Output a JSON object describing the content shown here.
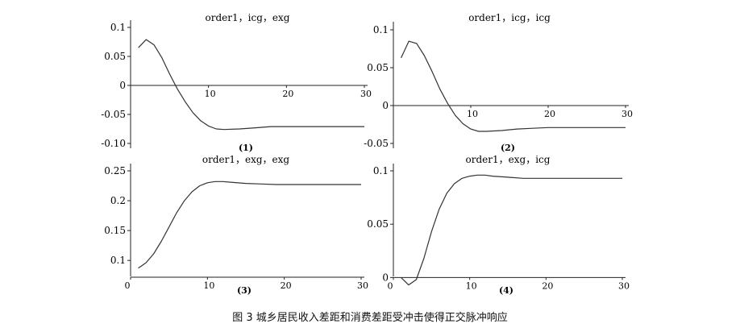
{
  "figure": {
    "caption": "图 3    城乡居民收入差距和消费差距受冲击使得正交脉冲响应"
  },
  "chart_data": [
    {
      "type": "line",
      "title": "order1，icg，exg",
      "label": "(1)",
      "xlabel": "",
      "ylabel": "",
      "xlim": [
        0,
        30
      ],
      "ylim": [
        -0.1,
        0.1
      ],
      "xticks": [
        {
          "v": 10,
          "t": "10"
        },
        {
          "v": 20,
          "t": "20"
        },
        {
          "v": 30,
          "t": "30"
        }
      ],
      "yticks": [
        {
          "v": 0.1,
          "t": "0.1"
        },
        {
          "v": 0.05,
          "t": "0.05"
        },
        {
          "v": 0,
          "t": "0"
        },
        {
          "v": -0.05,
          "t": "-0.05"
        },
        {
          "v": -0.1,
          "t": "-0.10"
        }
      ],
      "zero_line": true,
      "x": [
        1,
        2,
        3,
        4,
        5,
        6,
        7,
        8,
        9,
        10,
        11,
        12,
        14,
        16,
        18,
        20,
        22,
        25,
        28,
        30
      ],
      "y": [
        0.065,
        0.079,
        0.07,
        0.048,
        0.02,
        -0.006,
        -0.028,
        -0.047,
        -0.061,
        -0.07,
        -0.075,
        -0.076,
        -0.075,
        -0.073,
        -0.071,
        -0.071,
        -0.071,
        -0.071,
        -0.071,
        -0.071
      ]
    },
    {
      "type": "line",
      "title": "order1，icg，icg",
      "label": "(2)",
      "xlabel": "",
      "ylabel": "",
      "xlim": [
        0,
        30
      ],
      "ylim": [
        -0.05,
        0.1
      ],
      "xticks": [
        {
          "v": 10,
          "t": "10"
        },
        {
          "v": 20,
          "t": "20"
        },
        {
          "v": 30,
          "t": "30"
        }
      ],
      "yticks": [
        {
          "v": 0.1,
          "t": "0.1"
        },
        {
          "v": 0.05,
          "t": "0.05"
        },
        {
          "v": 0,
          "t": "0"
        },
        {
          "v": -0.05,
          "t": "-0.05"
        }
      ],
      "zero_line": true,
      "x": [
        1,
        2,
        3,
        4,
        5,
        6,
        7,
        8,
        9,
        10,
        11,
        12,
        14,
        16,
        18,
        20,
        22,
        25,
        28,
        30
      ],
      "y": [
        0.063,
        0.085,
        0.082,
        0.066,
        0.045,
        0.022,
        0.003,
        -0.013,
        -0.024,
        -0.031,
        -0.034,
        -0.034,
        -0.033,
        -0.031,
        -0.03,
        -0.029,
        -0.029,
        -0.029,
        -0.029,
        -0.029
      ]
    },
    {
      "type": "line",
      "title": "order1，exg，exg",
      "label": "(3)",
      "xlabel": "",
      "ylabel": "",
      "xlim": [
        0,
        30
      ],
      "ylim": [
        0.08,
        0.25
      ],
      "xticks": [
        {
          "v": 0,
          "t": "0"
        },
        {
          "v": 10,
          "t": "10"
        },
        {
          "v": 20,
          "t": "20"
        },
        {
          "v": 30,
          "t": "30"
        }
      ],
      "yticks": [
        {
          "v": 0.25,
          "t": "0.25"
        },
        {
          "v": 0.2,
          "t": "0.2"
        },
        {
          "v": 0.15,
          "t": "0.15"
        },
        {
          "v": 0.1,
          "t": "0.1"
        }
      ],
      "zero_line": false,
      "x": [
        1,
        2,
        3,
        4,
        5,
        6,
        7,
        8,
        9,
        10,
        11,
        12,
        13,
        15,
        17,
        19,
        21,
        23,
        26,
        30
      ],
      "y": [
        0.087,
        0.096,
        0.111,
        0.132,
        0.156,
        0.18,
        0.2,
        0.215,
        0.225,
        0.23,
        0.232,
        0.232,
        0.231,
        0.229,
        0.228,
        0.227,
        0.227,
        0.227,
        0.227,
        0.227
      ]
    },
    {
      "type": "line",
      "title": "order1，exg，icg",
      "label": "(4)",
      "xlabel": "",
      "ylabel": "",
      "xlim": [
        0,
        30
      ],
      "ylim": [
        -0.002,
        0.1
      ],
      "xticks": [
        {
          "v": 0,
          "t": "0"
        },
        {
          "v": 10,
          "t": "10"
        },
        {
          "v": 20,
          "t": "20"
        },
        {
          "v": 30,
          "t": "30"
        }
      ],
      "yticks": [
        {
          "v": 0.1,
          "t": "0.1"
        },
        {
          "v": 0.05,
          "t": "0.05"
        },
        {
          "v": 0,
          "t": "0"
        }
      ],
      "zero_line": true,
      "x": [
        1,
        2,
        3,
        4,
        5,
        6,
        7,
        8,
        9,
        10,
        11,
        12,
        13,
        15,
        17,
        19,
        21,
        23,
        26,
        30
      ],
      "y": [
        0,
        -0.007,
        -0.002,
        0.018,
        0.043,
        0.064,
        0.079,
        0.088,
        0.093,
        0.095,
        0.096,
        0.096,
        0.095,
        0.094,
        0.093,
        0.093,
        0.093,
        0.093,
        0.093,
        0.093
      ]
    }
  ]
}
